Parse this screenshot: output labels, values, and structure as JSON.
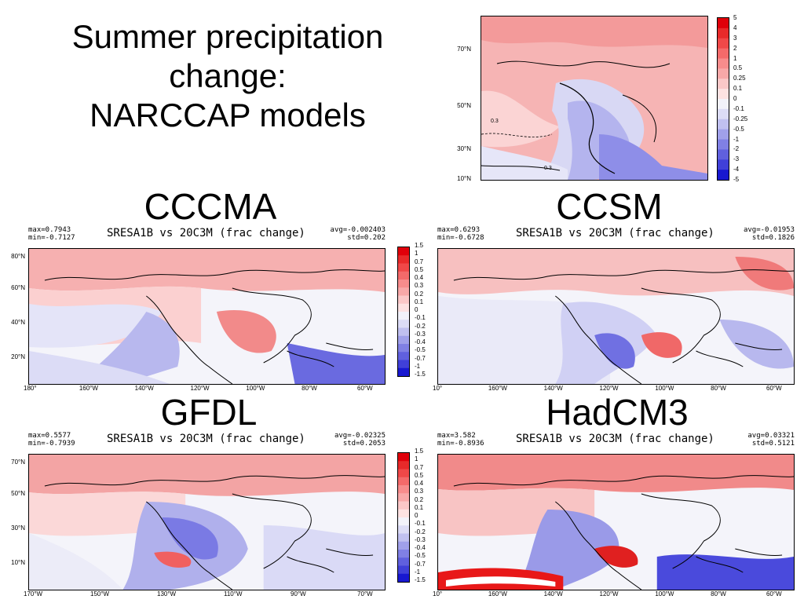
{
  "slide": {
    "title_lines": [
      "Summer precipitation",
      "change:",
      "NARCCAP models"
    ]
  },
  "colorbar_top": {
    "labels": [
      "5",
      "4",
      "3",
      "2",
      "1",
      "0.5",
      "0.25",
      "0.1",
      "0",
      "-0.1",
      "-0.25",
      "-0.5",
      "-1",
      "-2",
      "-3",
      "-4",
      "-5"
    ],
    "colors": [
      "#e0000a",
      "#e82a2a",
      "#f04848",
      "#f46a6a",
      "#f78c8c",
      "#f8a8a8",
      "#fbc8c8",
      "#fde2e2",
      "#f2f2fa",
      "#dcdcf6",
      "#c0c0f0",
      "#a0a0ea",
      "#8080e4",
      "#6060de",
      "#4040d8",
      "#1818d0"
    ]
  },
  "colorbar_panel": {
    "labels": [
      "1.5",
      "1",
      "0.7",
      "0.5",
      "0.4",
      "0.3",
      "0.2",
      "0.1",
      "0",
      "-0.1",
      "-0.2",
      "-0.3",
      "-0.4",
      "-0.5",
      "-0.7",
      "-1",
      "-1.5"
    ],
    "colors": [
      "#e0000a",
      "#e82a2a",
      "#f04848",
      "#f46a6a",
      "#f78c8c",
      "#f8a8a8",
      "#fbc8c8",
      "#fde2e2",
      "#f2f2fa",
      "#dcdcf6",
      "#c0c0f0",
      "#a0a0ea",
      "#8080e4",
      "#6060de",
      "#4040d8",
      "#1818d0"
    ]
  },
  "top_map": {
    "lat_labels": [
      "70°N",
      "50°N",
      "30°N",
      "10°N"
    ],
    "contour_labels": [
      "0.3",
      "0.3"
    ]
  },
  "panels": [
    {
      "model": "CCCMA",
      "title": "SRESA1B vs 20C3M (frac change)",
      "max": "max=0.7943",
      "min": "min=-0.7127",
      "avg": "avg=-0.002403",
      "std": "std=0.202",
      "lat_labels": [
        "80°N",
        "60°N",
        "40°N",
        "20°N"
      ],
      "lon_labels": [
        "180°",
        "160°W",
        "140°W",
        "120°W",
        "100°W",
        "80°W",
        "60°W"
      ]
    },
    {
      "model": "CCSM",
      "title": "SRESA1B vs 20C3M (frac change)",
      "max": "max=0.6293",
      "min": "min=-0.6728",
      "avg": "avg=-0.01953",
      "std": "std=0.1826",
      "lat_labels": [],
      "lon_labels": [
        "10°",
        "160°W",
        "140°W",
        "120°W",
        "100°W",
        "80°W",
        "60°W"
      ]
    },
    {
      "model": "GFDL",
      "title": "SRESA1B vs 20C3M (frac change)",
      "max": "max=0.5577",
      "min": "min=-0.7939",
      "avg": "avg=-0.02325",
      "std": "std=0.2053",
      "lat_labels": [
        "70°N",
        "50°N",
        "30°N",
        "10°N"
      ],
      "lon_labels": [
        "170°W",
        "150°W",
        "130°W",
        "110°W",
        "90°W",
        "70°W"
      ]
    },
    {
      "model": "HadCM3",
      "title": "SRESA1B vs 20C3M (frac change)",
      "max": "max=3.582",
      "min": "min=-0.8936",
      "avg": "avg=0.03321",
      "std": "std=0.5121",
      "lat_labels": [],
      "lon_labels": [
        "10°",
        "160°W",
        "140°W",
        "120°W",
        "100°W",
        "80°W",
        "60°W"
      ]
    }
  ]
}
